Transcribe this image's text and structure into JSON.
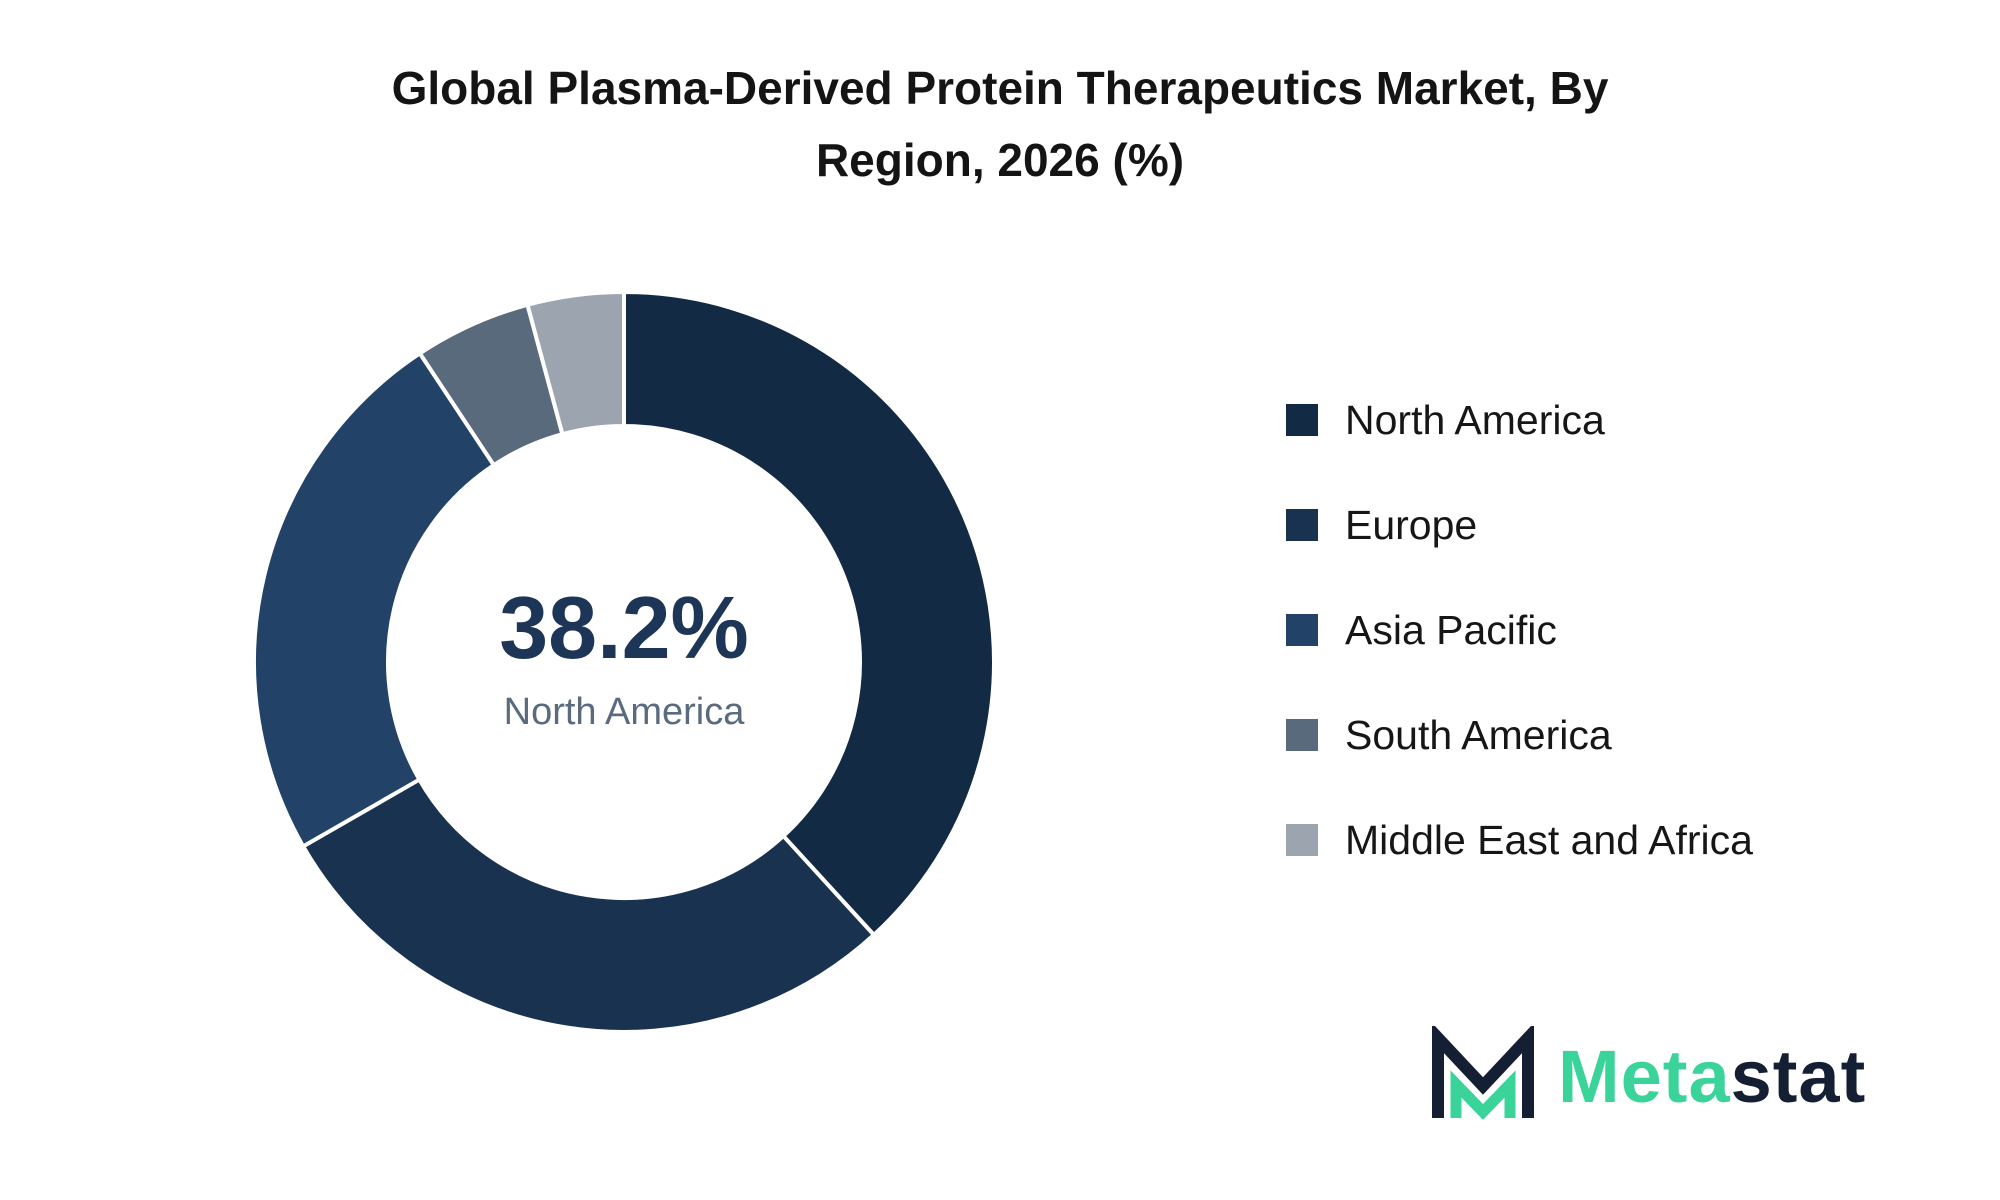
{
  "title": "Global Plasma-Derived Protein Therapeutics Market, By\nRegion, 2026 (%)",
  "center": {
    "value": "38.2%",
    "label": "North America"
  },
  "chart_data": {
    "type": "pie",
    "variant": "donut",
    "title": "Global Plasma-Derived Protein Therapeutics Market, By Region, 2026 (%)",
    "unit": "%",
    "legend_position": "right",
    "categories": [
      "North America",
      "Europe",
      "Asia Pacific",
      "South America",
      "Middle East and Africa"
    ],
    "values": [
      38.2,
      28.5,
      24.0,
      5.1,
      4.2
    ],
    "colors": [
      "#132a44",
      "#19324f",
      "#224268",
      "#596a7d",
      "#9ca4b0"
    ]
  },
  "logo": {
    "part1": "Meta",
    "part2": "stat",
    "accent": "#3ad39a",
    "dark": "#141f33"
  }
}
